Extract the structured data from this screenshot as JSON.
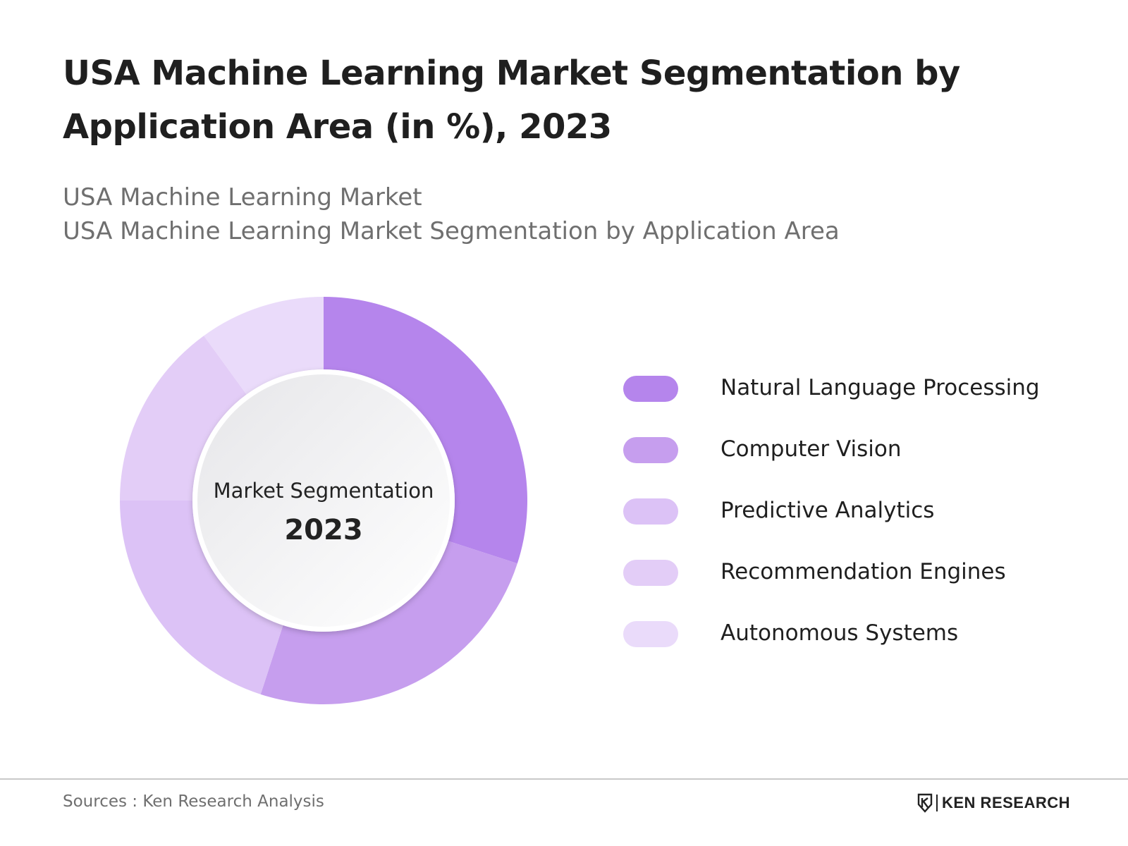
{
  "title": "USA Machine Learning Market Segmentation by Application Area (in %), 2023",
  "subtitle_lines": [
    "USA Machine Learning Market",
    "USA Machine Learning Market Segmentation by Application Area"
  ],
  "center": {
    "label": "Market Segmentation",
    "year": "2023"
  },
  "chart_data": {
    "type": "pie",
    "title": "USA Machine Learning Market Segmentation by Application Area (in %), 2023",
    "categories": [
      "Natural Language Processing",
      "Computer Vision",
      "Predictive Analytics",
      "Recommendation Engines",
      "Autonomous Systems"
    ],
    "values": [
      30,
      25,
      20,
      15,
      10
    ],
    "colors": [
      "#b585ec",
      "#c69eee",
      "#dcc2f6",
      "#e3cdf7",
      "#eadbfa"
    ],
    "legend_position": "right"
  },
  "footer": {
    "source": "Sources : Ken Research Analysis",
    "brand": "KEN RESEARCH",
    "brand_logo": "ken-research-logo"
  }
}
